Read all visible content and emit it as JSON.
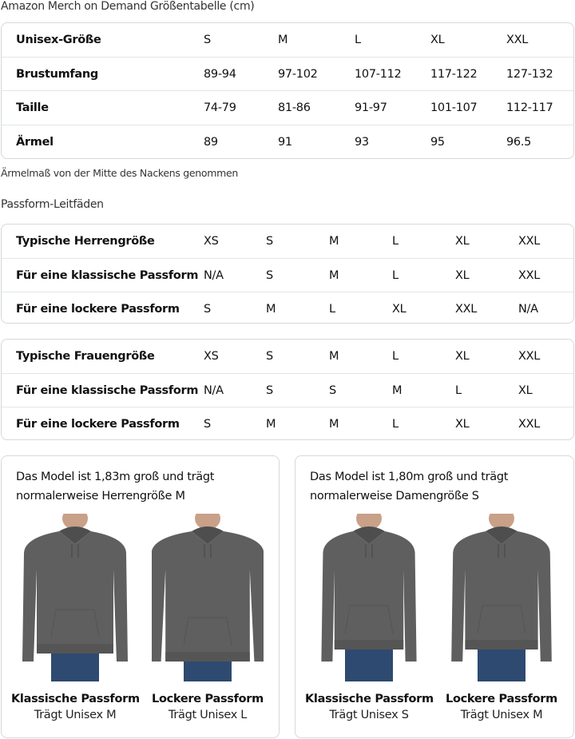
{
  "title": "Amazon Merch on Demand Größentabelle (cm)",
  "size_table": {
    "rows": [
      {
        "label": "Unisex-Größe",
        "values": [
          "S",
          "M",
          "L",
          "XL",
          "XXL"
        ]
      },
      {
        "label": "Brustumfang",
        "values": [
          "89-94",
          "97-102",
          "107-112",
          "117-122",
          "127-132"
        ]
      },
      {
        "label": "Taille",
        "values": [
          "74-79",
          "81-86",
          "91-97",
          "101-107",
          "112-117"
        ]
      },
      {
        "label": "Ärmel",
        "values": [
          "89",
          "91",
          "93",
          "95",
          "96.5"
        ]
      }
    ]
  },
  "note": "Ärmelmaß von der Mitte des Nackens genommen",
  "fit_title": "Passform-Leitfäden",
  "men_table": {
    "rows": [
      {
        "label": "Typische Herrengröße",
        "values": [
          "XS",
          "S",
          "M",
          "L",
          "XL",
          "XXL"
        ]
      },
      {
        "label": "Für eine klassische Passform",
        "values": [
          "N/A",
          "S",
          "M",
          "L",
          "XL",
          "XXL"
        ]
      },
      {
        "label": "Für eine lockere Passform",
        "values": [
          "S",
          "M",
          "L",
          "XL",
          "XXL",
          "N/A"
        ]
      }
    ]
  },
  "women_table": {
    "rows": [
      {
        "label": "Typische Frauengröße",
        "values": [
          "XS",
          "S",
          "M",
          "L",
          "XL",
          "XXL"
        ]
      },
      {
        "label": "Für eine klassische Passform",
        "values": [
          "N/A",
          "S",
          "S",
          "M",
          "L",
          "XL"
        ]
      },
      {
        "label": "Für eine lockere Passform",
        "values": [
          "S",
          "M",
          "M",
          "L",
          "XL",
          "XXL"
        ]
      }
    ]
  },
  "models": [
    {
      "text_line1": "Das Model ist 1,83m groß und trägt",
      "text_line2": "normalerweise Herrengröße M",
      "figures": [
        {
          "fit": "Klassische Passform",
          "wears": "Trägt Unisex M"
        },
        {
          "fit": "Lockere Passform",
          "wears": "Trägt Unisex L"
        }
      ]
    },
    {
      "text_line1": "Das Model ist 1,80m groß und trägt",
      "text_line2": "normalerweise Damengröße S",
      "figures": [
        {
          "fit": "Klassische Passform",
          "wears": "Trägt Unisex S"
        },
        {
          "fit": "Lockere Passform",
          "wears": "Trägt Unisex M"
        }
      ]
    }
  ],
  "colors": {
    "hoodie": "#5f5f5f",
    "jeans": "#2f4a70",
    "border": "#d5d9d9"
  }
}
